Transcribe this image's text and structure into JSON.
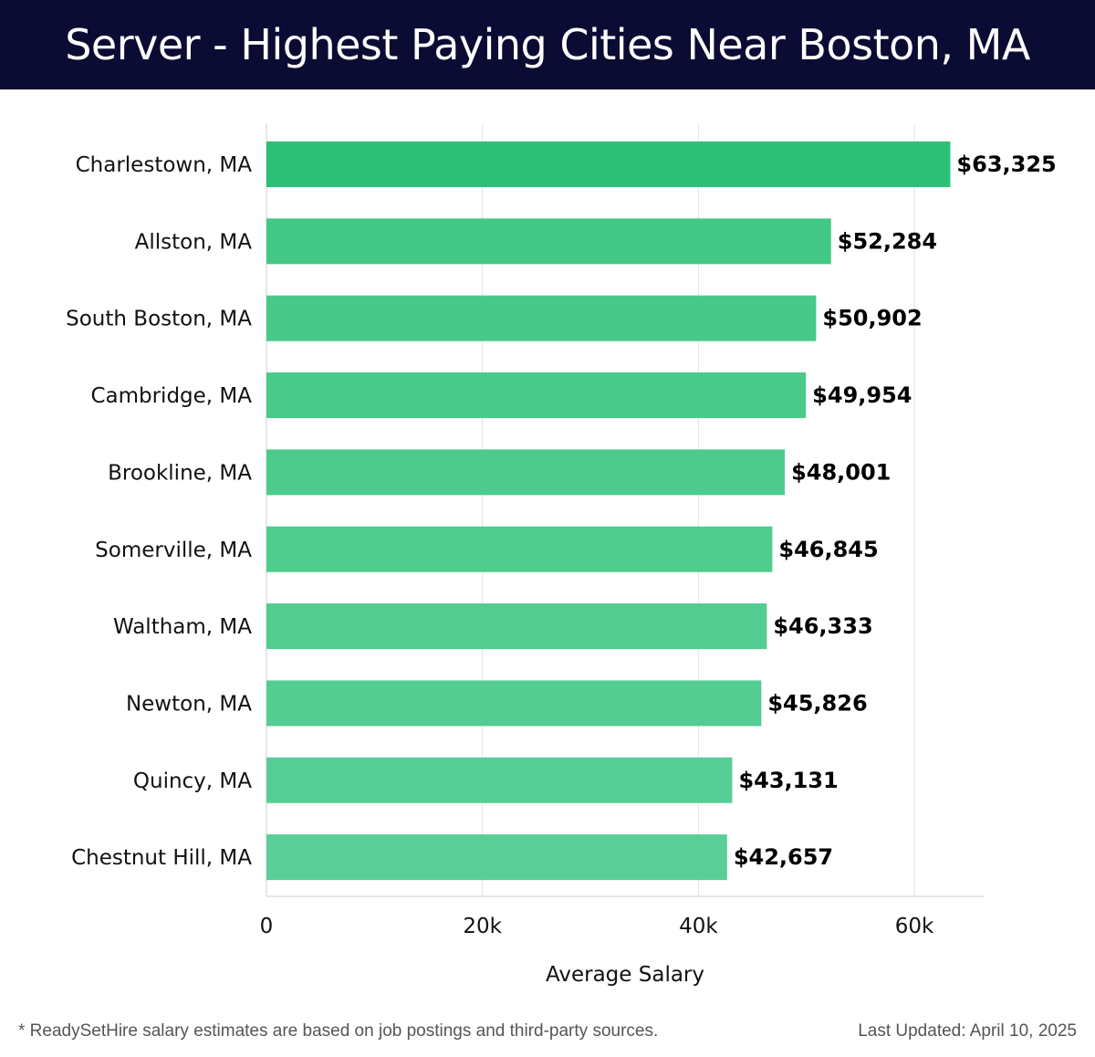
{
  "header": {
    "title": "Server - Highest Paying Cities Near Boston, MA"
  },
  "chart_data": {
    "type": "bar",
    "orientation": "horizontal",
    "title": "Server - Highest Paying Cities Near Boston, MA",
    "xlabel": "Average Salary",
    "ylabel": "",
    "xlim": [
      0,
      66500
    ],
    "x_ticks": [
      0,
      20000,
      40000,
      60000
    ],
    "x_tick_labels": [
      "0",
      "20k",
      "40k",
      "60k"
    ],
    "grid": "vertical",
    "categories": [
      "Charlestown, MA",
      "Allston, MA",
      "South Boston, MA",
      "Cambridge, MA",
      "Brookline, MA",
      "Somerville, MA",
      "Waltham, MA",
      "Newton, MA",
      "Quincy, MA",
      "Chestnut Hill, MA"
    ],
    "values": [
      63325,
      52284,
      50902,
      49954,
      48001,
      46845,
      46333,
      45826,
      43131,
      42657
    ],
    "value_labels": [
      "$63,325",
      "$52,284",
      "$50,902",
      "$49,954",
      "$48,001",
      "$46,845",
      "$46,333",
      "$45,826",
      "$43,131",
      "$42,657"
    ],
    "bar_colors": [
      "#2bbf77",
      "#44c887",
      "#47c989",
      "#4aca8b",
      "#4dcb8d",
      "#50cc8f",
      "#52cc90",
      "#54cd92",
      "#57ce95",
      "#59cf97"
    ],
    "colors": {
      "grid": "#e3e3e3",
      "axis": "#cccccc",
      "text": "#111111",
      "label": "#000000"
    }
  },
  "footer": {
    "note": "* ReadySetHire salary estimates are based on job postings and third-party sources.",
    "updated": "Last Updated: April 10, 2025"
  }
}
